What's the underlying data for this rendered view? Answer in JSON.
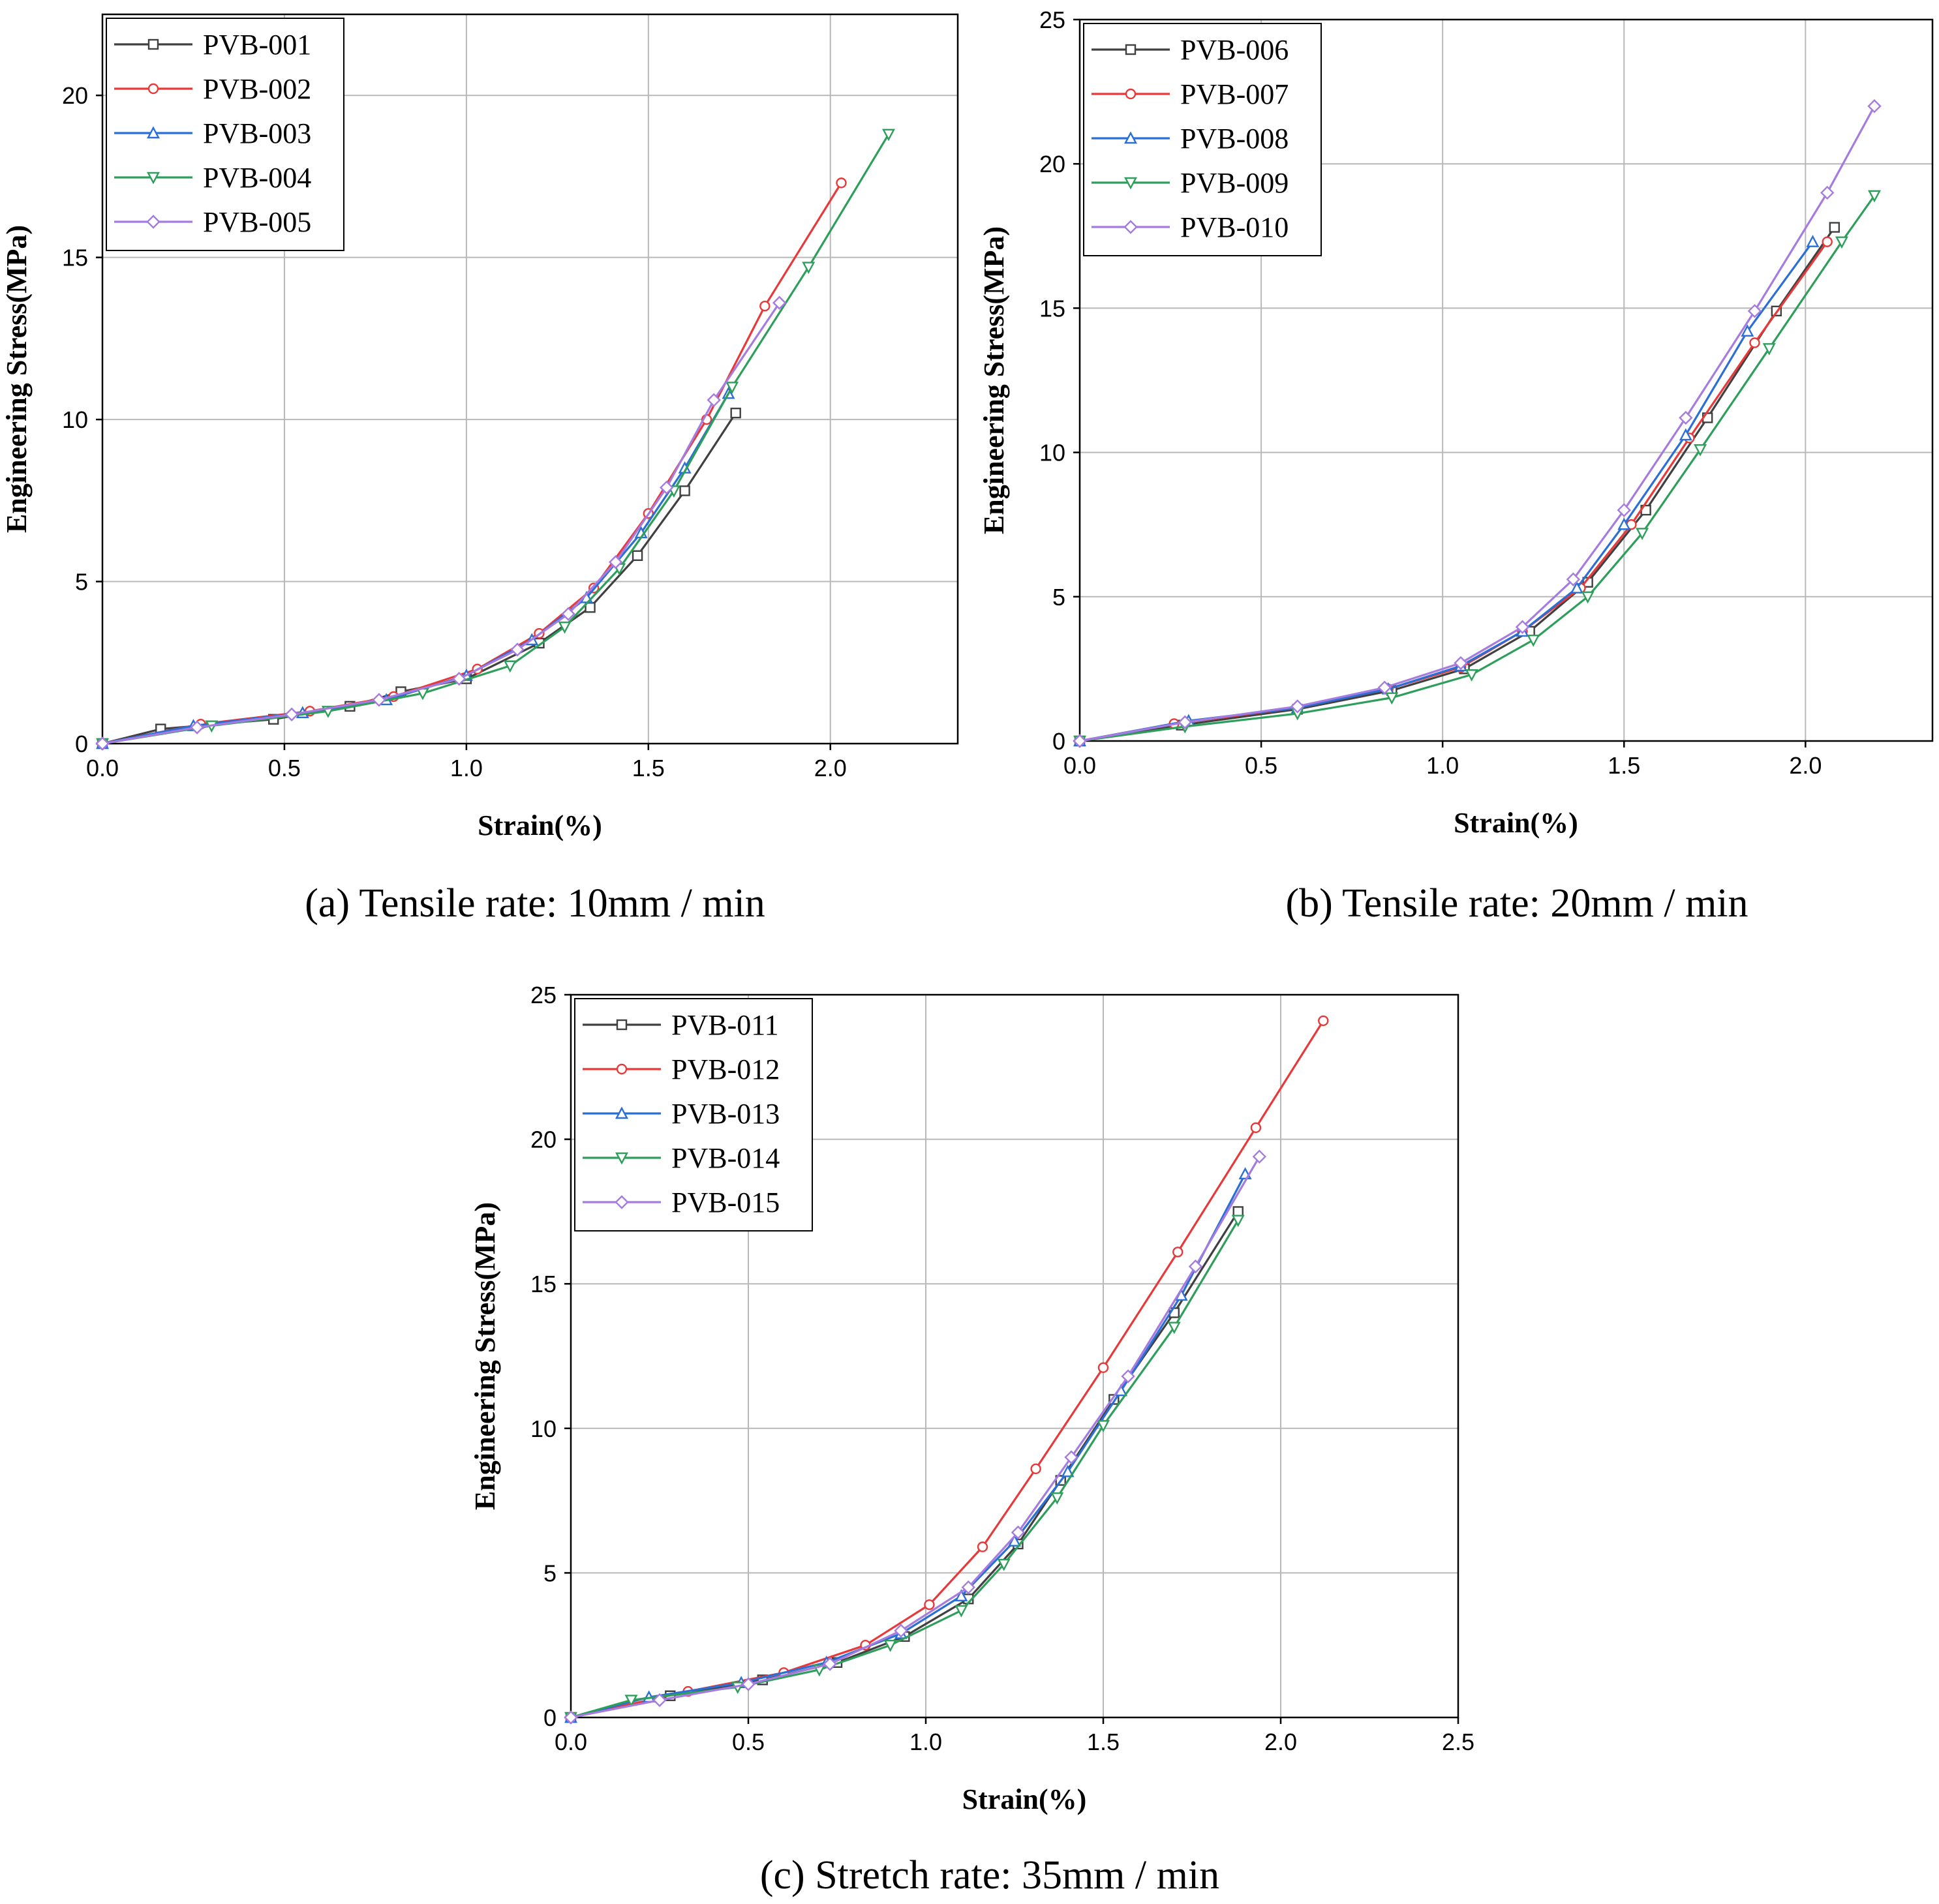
{
  "chart_data": [
    {
      "type": "line",
      "caption": "(a) Tensile rate: 10mm / min",
      "xlabel": "Strain(%)",
      "ylabel": "Engineering Stress(MPa)",
      "xlim": [
        0,
        2.35
      ],
      "ylim": [
        0,
        22.5
      ],
      "xticks": [
        "0.0",
        "0.5",
        "1.0",
        "1.5",
        "2.0"
      ],
      "xtick_values": [
        0,
        0.5,
        1.0,
        1.5,
        2.0
      ],
      "yticks": [
        "0",
        "5",
        "10",
        "15",
        "20"
      ],
      "ytick_values": [
        0,
        5,
        10,
        15,
        20
      ],
      "grid": true,
      "legend_position": "top-left",
      "series": [
        {
          "name": "PVB-001",
          "color": "#404040",
          "marker": "square",
          "x": [
            0,
            0.16,
            0.47,
            0.68,
            0.82,
            1.0,
            1.2,
            1.34,
            1.47,
            1.6,
            1.74
          ],
          "y": [
            0,
            0.45,
            0.75,
            1.15,
            1.6,
            2.0,
            3.1,
            4.2,
            5.8,
            7.8,
            10.2
          ]
        },
        {
          "name": "PVB-002",
          "color": "#e8393a",
          "marker": "circle",
          "x": [
            0,
            0.27,
            0.57,
            0.8,
            1.03,
            1.2,
            1.35,
            1.5,
            1.66,
            1.82,
            2.03
          ],
          "y": [
            0,
            0.6,
            1.0,
            1.45,
            2.3,
            3.4,
            4.8,
            7.1,
            10.0,
            13.5,
            17.3
          ]
        },
        {
          "name": "PVB-003",
          "color": "#2a6fd6",
          "marker": "triangle-up",
          "x": [
            0,
            0.25,
            0.55,
            0.78,
            1.0,
            1.18,
            1.33,
            1.48,
            1.6,
            1.72
          ],
          "y": [
            0,
            0.55,
            0.95,
            1.35,
            2.1,
            3.2,
            4.5,
            6.5,
            8.5,
            10.8
          ]
        },
        {
          "name": "PVB-004",
          "color": "#2e9e5b",
          "marker": "triangle-down",
          "x": [
            0,
            0.3,
            0.62,
            0.88,
            1.12,
            1.27,
            1.42,
            1.57,
            1.73,
            1.94,
            2.16
          ],
          "y": [
            0,
            0.55,
            1.0,
            1.55,
            2.4,
            3.6,
            5.4,
            7.8,
            11.0,
            14.7,
            18.8
          ]
        },
        {
          "name": "PVB-005",
          "color": "#a57be0",
          "marker": "diamond",
          "x": [
            0,
            0.26,
            0.52,
            0.76,
            0.98,
            1.14,
            1.28,
            1.41,
            1.55,
            1.68,
            1.86
          ],
          "y": [
            0,
            0.5,
            0.9,
            1.35,
            2.0,
            2.9,
            4.0,
            5.6,
            7.9,
            10.6,
            13.6
          ]
        }
      ]
    },
    {
      "type": "line",
      "caption": "(b) Tensile rate: 20mm / min",
      "xlabel": "Strain(%)",
      "ylabel": "Engineering Stress(MPa)",
      "xlim": [
        0,
        2.35
      ],
      "ylim": [
        0,
        25
      ],
      "xticks": [
        "0.0",
        "0.5",
        "1.0",
        "1.5",
        "2.0"
      ],
      "xtick_values": [
        0,
        0.5,
        1.0,
        1.5,
        2.0
      ],
      "yticks": [
        "0",
        "5",
        "10",
        "15",
        "20",
        "25"
      ],
      "ytick_values": [
        0,
        5,
        10,
        15,
        20,
        25
      ],
      "grid": true,
      "legend_position": "top-left",
      "series": [
        {
          "name": "PVB-006",
          "color": "#404040",
          "marker": "square",
          "x": [
            0,
            0.28,
            0.6,
            0.86,
            1.06,
            1.24,
            1.4,
            1.56,
            1.73,
            1.92,
            2.08
          ],
          "y": [
            0,
            0.55,
            1.1,
            1.75,
            2.5,
            3.8,
            5.5,
            8.0,
            11.2,
            14.9,
            17.8
          ]
        },
        {
          "name": "PVB-007",
          "color": "#e8393a",
          "marker": "circle",
          "x": [
            0,
            0.26,
            0.6,
            0.85,
            1.05,
            1.22,
            1.38,
            1.52,
            1.68,
            1.86,
            2.06
          ],
          "y": [
            0,
            0.6,
            1.15,
            1.8,
            2.55,
            3.8,
            5.3,
            7.5,
            10.5,
            13.8,
            17.3
          ]
        },
        {
          "name": "PVB-008",
          "color": "#2a6fd6",
          "marker": "triangle-up",
          "x": [
            0,
            0.3,
            0.6,
            0.85,
            1.05,
            1.22,
            1.37,
            1.5,
            1.67,
            1.84,
            2.02
          ],
          "y": [
            0,
            0.7,
            1.15,
            1.8,
            2.6,
            3.8,
            5.3,
            7.5,
            10.6,
            14.2,
            17.3
          ]
        },
        {
          "name": "PVB-009",
          "color": "#2e9e5b",
          "marker": "triangle-down",
          "x": [
            0,
            0.29,
            0.6,
            0.86,
            1.08,
            1.25,
            1.4,
            1.55,
            1.71,
            1.9,
            2.1,
            2.19
          ],
          "y": [
            0,
            0.5,
            0.95,
            1.5,
            2.3,
            3.5,
            5.0,
            7.2,
            10.1,
            13.6,
            17.3,
            18.9
          ]
        },
        {
          "name": "PVB-010",
          "color": "#a57be0",
          "marker": "diamond",
          "x": [
            0,
            0.29,
            0.6,
            0.84,
            1.05,
            1.22,
            1.36,
            1.5,
            1.67,
            1.86,
            2.06,
            2.19
          ],
          "y": [
            0,
            0.65,
            1.2,
            1.85,
            2.7,
            3.95,
            5.6,
            8.0,
            11.2,
            14.9,
            19.0,
            22.0
          ]
        }
      ]
    },
    {
      "type": "line",
      "caption": "(c) Stretch rate: 35mm / min",
      "xlabel": "Strain(%)",
      "ylabel": "Engineering Stress(MPa)",
      "xlim": [
        0,
        2.5
      ],
      "ylim": [
        0,
        25
      ],
      "xticks": [
        "0.0",
        "0.5",
        "1.0",
        "1.5",
        "2.0",
        "2.5"
      ],
      "xtick_values": [
        0,
        0.5,
        1.0,
        1.5,
        2.0,
        2.5
      ],
      "yticks": [
        "0",
        "5",
        "10",
        "15",
        "20",
        "25"
      ],
      "ytick_values": [
        0,
        5,
        10,
        15,
        20,
        25
      ],
      "grid": true,
      "legend_position": "top-left",
      "series": [
        {
          "name": "PVB-011",
          "color": "#404040",
          "marker": "square",
          "x": [
            0,
            0.28,
            0.54,
            0.75,
            0.94,
            1.12,
            1.26,
            1.38,
            1.53,
            1.7,
            1.88
          ],
          "y": [
            0,
            0.75,
            1.3,
            1.9,
            2.8,
            4.1,
            6.0,
            8.2,
            11.0,
            14.0,
            17.5
          ]
        },
        {
          "name": "PVB-012",
          "color": "#e8393a",
          "marker": "circle",
          "x": [
            0,
            0.33,
            0.6,
            0.83,
            1.01,
            1.16,
            1.31,
            1.5,
            1.71,
            1.93,
            2.12
          ],
          "y": [
            0,
            0.9,
            1.55,
            2.5,
            3.9,
            5.9,
            8.6,
            12.1,
            16.1,
            20.4,
            24.1
          ]
        },
        {
          "name": "PVB-013",
          "color": "#2a6fd6",
          "marker": "triangle-up",
          "x": [
            0,
            0.22,
            0.48,
            0.72,
            0.93,
            1.1,
            1.25,
            1.4,
            1.55,
            1.72,
            1.9
          ],
          "y": [
            0,
            0.7,
            1.2,
            1.9,
            2.9,
            4.2,
            6.1,
            8.5,
            11.3,
            14.6,
            18.8
          ]
        },
        {
          "name": "PVB-014",
          "color": "#2e9e5b",
          "marker": "triangle-down",
          "x": [
            0,
            0.17,
            0.47,
            0.7,
            0.9,
            1.1,
            1.22,
            1.37,
            1.5,
            1.7,
            1.88
          ],
          "y": [
            0,
            0.6,
            1.05,
            1.65,
            2.5,
            3.7,
            5.3,
            7.6,
            10.1,
            13.5,
            17.2
          ]
        },
        {
          "name": "PVB-015",
          "color": "#a57be0",
          "marker": "diamond",
          "x": [
            0,
            0.25,
            0.5,
            0.73,
            0.93,
            1.12,
            1.26,
            1.41,
            1.57,
            1.76,
            1.94
          ],
          "y": [
            0,
            0.6,
            1.15,
            1.85,
            3.0,
            4.5,
            6.4,
            9.0,
            11.8,
            15.6,
            19.4
          ]
        }
      ]
    }
  ]
}
